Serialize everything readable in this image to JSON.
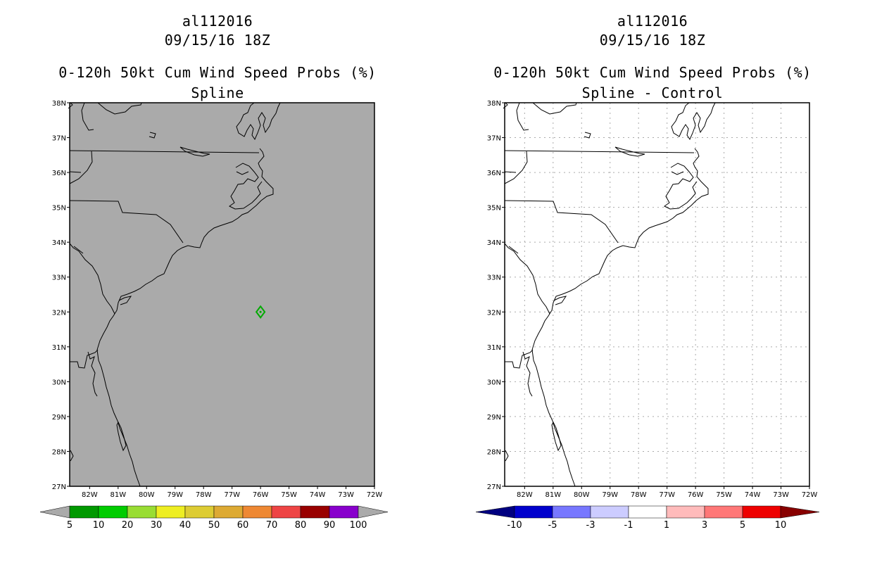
{
  "left_panel": {
    "title_storm": "al112016",
    "title_date": "09/15/16 18Z",
    "title_product": "0-120h 50kt Cum Wind Speed Probs (%)",
    "title_subtitle": "Spline",
    "background_color": "#aaaaaa",
    "colorbar": {
      "labels": [
        "5",
        "10",
        "20",
        "30",
        "40",
        "50",
        "60",
        "70",
        "80",
        "90",
        "100"
      ],
      "colors": [
        "#009900",
        "#00cc00",
        "#99dd33",
        "#eeee22",
        "#ddcc33",
        "#ddaa33",
        "#ee8833",
        "#ee4444",
        "#990000",
        "#8800cc"
      ],
      "end_color": "#aaaaaa"
    },
    "feature": {
      "name": "probability contour",
      "lon": -76.0,
      "lat": 32.0,
      "color": "#00aa00"
    }
  },
  "right_panel": {
    "title_storm": "al112016",
    "title_date": "09/15/16 18Z",
    "title_product": "0-120h 50kt Cum Wind Speed Probs (%)",
    "title_subtitle": "Spline - Control",
    "background_color": "#ffffff",
    "colorbar": {
      "labels": [
        "-10",
        "-5",
        "-3",
        "-1",
        "1",
        "3",
        "5",
        "10"
      ],
      "colors": [
        "#0000cc",
        "#7777ff",
        "#ccccff",
        "#ffffff",
        "#ffbbbb",
        "#ff7777",
        "#ee0000"
      ],
      "low_end_color": "#000080",
      "high_end_color": "#880000"
    }
  },
  "map": {
    "lat_labels": [
      "38N",
      "37N",
      "36N",
      "35N",
      "34N",
      "33N",
      "32N",
      "31N",
      "30N",
      "29N",
      "28N",
      "27N"
    ],
    "lon_labels": [
      "82W",
      "81W",
      "80W",
      "79W",
      "78W",
      "77W",
      "76W",
      "75W",
      "74W",
      "73W",
      "72W"
    ]
  }
}
